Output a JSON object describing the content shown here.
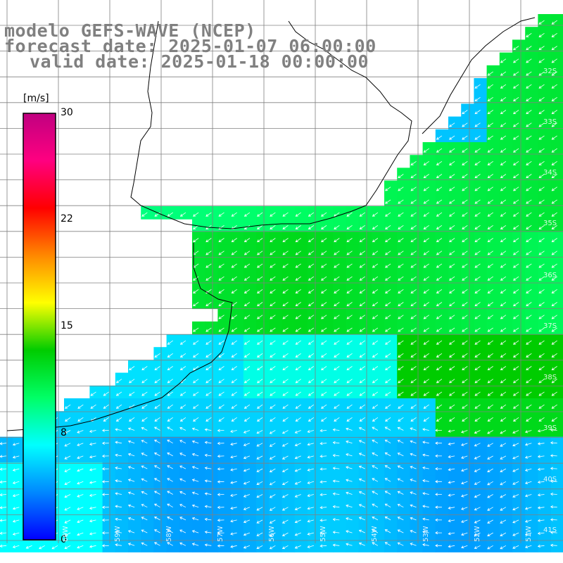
{
  "title": {
    "model": "modelo GEFS-WAVE (NCEP)",
    "forecast": "forecast date: 2025-01-07 06:00:00",
    "valid": "valid date: 2025-01-18 00:00:00"
  },
  "colorbar": {
    "unit": "[m/s]",
    "ticks": [
      "30",
      "22",
      "15",
      "8",
      "0"
    ],
    "colors": [
      "#0000ff",
      "#0088ff",
      "#00ffff",
      "#00ff66",
      "#00cc00",
      "#ffff00",
      "#ff8800",
      "#ff0000",
      "#ff0080",
      "#c00080"
    ]
  },
  "lat_labels": [
    "32S",
    "33S",
    "34S",
    "35S",
    "36S",
    "37S",
    "38S",
    "39S",
    "40S",
    "41S"
  ],
  "lon_labels": [
    "60W",
    "59W",
    "58W",
    "57W",
    "56W",
    "55W",
    "54W",
    "53W",
    "52W",
    "51W"
  ],
  "colors": {
    "land": "#ffffff",
    "grid": "#808080",
    "coast": "#000000",
    "arrow": "#ffffff"
  }
}
